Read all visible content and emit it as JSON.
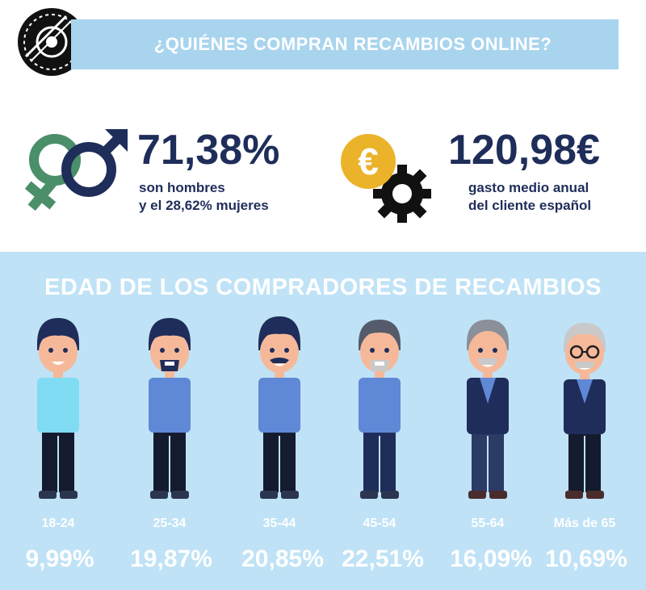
{
  "header": {
    "title": "¿QUIÉNES COMPRAN RECAMBIOS ONLINE?"
  },
  "stats": {
    "gender": {
      "value": "71,38%",
      "line1": "son hombres",
      "line2": "y el 28,62% mujeres"
    },
    "spend": {
      "value": "120,98€",
      "line1": "gasto medio anual",
      "line2": "del cliente español"
    }
  },
  "ages": {
    "title": "EDAD DE LOS COMPRADORES DE RECAMBIOS",
    "groups": [
      {
        "label": "18-24",
        "percent": "9,99%"
      },
      {
        "label": "25-34",
        "percent": "19,87%"
      },
      {
        "label": "35-44",
        "percent": "20,85%"
      },
      {
        "label": "45-54",
        "percent": "22,51%"
      },
      {
        "label": "55-64",
        "percent": "16,09%"
      },
      {
        "label": "Más de 65",
        "percent": "10,69%"
      }
    ]
  },
  "colors": {
    "navy": "#1f2d5a",
    "banner": "#a9d4ee",
    "panel": "#bfe2f6",
    "green": "#4a8f6a",
    "gold": "#eab32a"
  },
  "icons": [
    "logo-disc-icon",
    "gender-symbols-icon",
    "euro-coin-gear-icon"
  ]
}
